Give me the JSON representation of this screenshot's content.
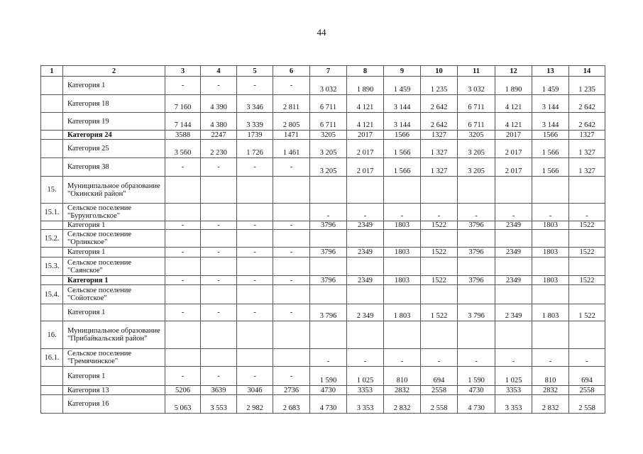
{
  "page_number": "44",
  "table": {
    "header": [
      "1",
      "2",
      "3",
      "4",
      "5",
      "6",
      "7",
      "8",
      "9",
      "10",
      "11",
      "12",
      "13",
      "14"
    ],
    "rows": [
      {
        "num": "",
        "label": "Категория 1",
        "bold": false,
        "values": [
          "-",
          "-",
          "-",
          "-",
          "3 032",
          "1 890",
          "1 459",
          "1 235",
          "3 032",
          "1 890",
          "1 459",
          "1 235"
        ]
      },
      {
        "num": "",
        "label": "Категория 18",
        "bold": false,
        "values": [
          "7 160",
          "4 390",
          "3 346",
          "2 811",
          "6 711",
          "4 121",
          "3 144",
          "2 642",
          "6 711",
          "4 121",
          "3 144",
          "2 642"
        ]
      },
      {
        "num": "",
        "label": "Категория 19",
        "bold": false,
        "values": [
          "7 144",
          "4 380",
          "3 339",
          "2 805",
          "6 711",
          "4 121",
          "3 144",
          "2 642",
          "6 711",
          "4 121",
          "3 144",
          "2 642"
        ]
      },
      {
        "num": "",
        "label": "Категория 24",
        "bold": true,
        "values": [
          "3588",
          "2247",
          "1739",
          "1471",
          "3205",
          "2017",
          "1566",
          "1327",
          "3205",
          "2017",
          "1566",
          "1327"
        ]
      },
      {
        "num": "",
        "label": "Категория 25",
        "bold": false,
        "values": [
          "3 560",
          "2 230",
          "1 726",
          "1 461",
          "3 205",
          "2 017",
          "1 566",
          "1 327",
          "3 205",
          "2 017",
          "1 566",
          "1 327"
        ]
      },
      {
        "num": "",
        "label": "Категория 38",
        "bold": false,
        "values": [
          "-",
          "-",
          "-",
          "-",
          "3 205",
          "2 017",
          "1 566",
          "1 327",
          "3 205",
          "2 017",
          "1 566",
          "1 327"
        ]
      },
      {
        "num": "15.",
        "label": "Муниципальное образование \"Окинский район\"",
        "bold": false,
        "values": [
          "",
          "",
          "",
          "",
          "",
          "",
          "",
          "",
          "",
          "",
          "",
          ""
        ]
      },
      {
        "num": "15.1.",
        "label": "Сельское поселение \"Бурунгольское\"",
        "bold": false,
        "values": [
          "",
          "",
          "",
          "",
          "-",
          "-",
          "-",
          "-",
          "-",
          "-",
          "-",
          "-"
        ]
      },
      {
        "num": "",
        "label": "Категория 1",
        "bold": false,
        "values": [
          "-",
          "-",
          "-",
          "-",
          "3796",
          "2349",
          "1803",
          "1522",
          "3796",
          "2349",
          "1803",
          "1522"
        ]
      },
      {
        "num": "15.2.",
        "label": "Сельское поселение \"Орликское\"",
        "bold": false,
        "values": [
          "",
          "",
          "",
          "",
          "",
          "",
          "",
          "",
          "",
          "",
          "",
          ""
        ]
      },
      {
        "num": "",
        "label": "Категория 1",
        "bold": false,
        "values": [
          "-",
          "-",
          "-",
          "-",
          "3796",
          "2349",
          "1803",
          "1522",
          "3796",
          "2349",
          "1803",
          "1522"
        ]
      },
      {
        "num": "15.3.",
        "label": "Сельское поселение \"Саянское\"",
        "bold": false,
        "values": [
          "",
          "",
          "",
          "",
          "",
          "",
          "",
          "",
          "",
          "",
          "",
          ""
        ]
      },
      {
        "num": "",
        "label": "Категория 1",
        "bold": true,
        "values": [
          "-",
          "-",
          "-",
          "-",
          "3796",
          "2349",
          "1803",
          "1522",
          "3796",
          "2349",
          "1803",
          "1522"
        ]
      },
      {
        "num": "15.4.",
        "label": "Сельское поселение \"Сойотское\"",
        "bold": false,
        "values": [
          "",
          "",
          "",
          "",
          "",
          "",
          "",
          "",
          "",
          "",
          "",
          ""
        ]
      },
      {
        "num": "",
        "label": "Категория 1",
        "bold": false,
        "values": [
          "-",
          "-",
          "-",
          "-",
          "3 796",
          "2 349",
          "1 803",
          "1 522",
          "3 796",
          "2 349",
          "1 803",
          "1 522"
        ]
      },
      {
        "num": "16.",
        "label": "Муниципальное образование \"Прибайкальский район\"",
        "bold": false,
        "values": [
          "",
          "",
          "",
          "",
          "",
          "",
          "",
          "",
          "",
          "",
          "",
          ""
        ]
      },
      {
        "num": "16.1.",
        "label": "Сельское поселение \"Гремячинское\"",
        "bold": false,
        "values": [
          "",
          "",
          "",
          "",
          "-",
          "-",
          "-",
          "-",
          "-",
          "-",
          "-",
          "-"
        ]
      },
      {
        "num": "",
        "label": "Категория 1",
        "bold": false,
        "values": [
          "-",
          "-",
          "-",
          "-",
          "1 590",
          "1 025",
          "810",
          "694",
          "1 590",
          "1 025",
          "810",
          "694"
        ]
      },
      {
        "num": "",
        "label": "Категория 13",
        "bold": false,
        "values": [
          "5206",
          "3639",
          "3046",
          "2736",
          "4730",
          "3353",
          "2832",
          "2558",
          "4730",
          "3353",
          "2832",
          "2558"
        ]
      },
      {
        "num": "",
        "label": "Категория 16",
        "bold": false,
        "values": [
          "5 063",
          "3 553",
          "2 982",
          "2 683",
          "4 730",
          "3 353",
          "2 832",
          "2 558",
          "4 730",
          "3 353",
          "2 832",
          "2 558"
        ]
      }
    ]
  }
}
